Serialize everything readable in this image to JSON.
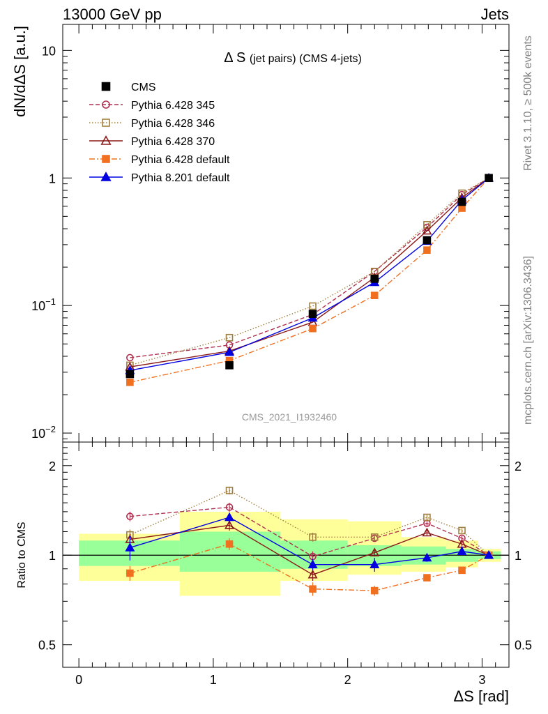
{
  "header": {
    "left": "13000 GeV pp",
    "right": "Jets"
  },
  "side_labels": {
    "rivet": "Rivet 3.1.10, ≥ 500k events",
    "mcplots": "mcplots.cern.ch [arXiv:1306.3436]"
  },
  "watermark": "CMS_2021_I1932460",
  "chart_data": [
    {
      "type": "line",
      "title_main": "Δ S",
      "title_sub": "(jet pairs) (CMS 4-jets)",
      "ylabel": "dN/dΔS [a.u.]",
      "yscale": "log",
      "xlim": [
        -0.12,
        3.2
      ],
      "ylim": [
        0.0085,
        16
      ],
      "y_ticks": [
        {
          "value": 0.01,
          "label": "10",
          "exp": "−2"
        },
        {
          "value": 0.1,
          "label": "10",
          "exp": "−1"
        },
        {
          "value": 1,
          "label": "1",
          "exp": ""
        },
        {
          "value": 10,
          "label": "10",
          "exp": ""
        }
      ],
      "legend_position": "top-left",
      "x": [
        0.38,
        1.12,
        1.74,
        2.2,
        2.59,
        2.85,
        3.05
      ],
      "series": [
        {
          "name": "CMS",
          "color": "#000000",
          "marker": "square-filled",
          "dash": "none",
          "values": [
            0.029,
            0.034,
            0.086,
            0.162,
            0.325,
            0.65,
            1.0
          ]
        },
        {
          "name": "Pythia 6.428 345",
          "color": "#b03050",
          "marker": "circle-open",
          "dash": "6,3",
          "values": [
            0.039,
            0.049,
            0.085,
            0.185,
            0.41,
            0.74,
            1.0
          ]
        },
        {
          "name": "Pythia 6.428 346",
          "color": "#a08040",
          "marker": "square-open",
          "dash": "1.5,2.5",
          "values": [
            0.034,
            0.056,
            0.099,
            0.185,
            0.43,
            0.76,
            1.0
          ]
        },
        {
          "name": "Pythia 6.428 370",
          "color": "#8b1a1a",
          "marker": "triangle-open",
          "dash": "none",
          "values": [
            0.033,
            0.044,
            0.074,
            0.166,
            0.385,
            0.7,
            1.0
          ]
        },
        {
          "name": "Pythia 6.428 default",
          "color": "#f07020",
          "marker": "square-filled",
          "dash": "8,3,2,3",
          "values": [
            0.025,
            0.037,
            0.066,
            0.12,
            0.272,
            0.58,
            1.0
          ]
        },
        {
          "name": "Pythia 8.201 default",
          "color": "#0000e0",
          "marker": "triangle-filled",
          "dash": "none",
          "values": [
            0.031,
            0.043,
            0.08,
            0.152,
            0.32,
            0.67,
            1.0
          ]
        }
      ]
    },
    {
      "type": "line",
      "xlabel": "ΔS [rad]",
      "ylabel": "Ratio to CMS",
      "yscale": "log",
      "xlim": [
        -0.12,
        3.2
      ],
      "ylim": [
        0.42,
        2.4
      ],
      "x_ticks": [
        0,
        1,
        2,
        3
      ],
      "y_ticks": [
        0.5,
        1,
        2
      ],
      "reference_line": 1,
      "bins": [
        [
          0,
          0.75
        ],
        [
          0.75,
          1.5
        ],
        [
          1.5,
          2.0
        ],
        [
          2.0,
          2.4
        ],
        [
          2.4,
          2.73
        ],
        [
          2.73,
          2.97
        ],
        [
          2.97,
          3.14
        ]
      ],
      "band_inner": [
        [
          0.92,
          1.12
        ],
        [
          0.88,
          1.2
        ],
        [
          0.9,
          1.12
        ],
        [
          0.92,
          1.08
        ],
        [
          0.93,
          1.07
        ],
        [
          0.95,
          1.05
        ],
        [
          0.97,
          1.03
        ]
      ],
      "band_outer": [
        [
          0.82,
          1.18
        ],
        [
          0.73,
          1.4
        ],
        [
          0.82,
          1.32
        ],
        [
          0.86,
          1.3
        ],
        [
          0.88,
          1.15
        ],
        [
          0.91,
          1.12
        ],
        [
          0.95,
          1.05
        ]
      ],
      "x": [
        0.38,
        1.12,
        1.74,
        2.2,
        2.59,
        2.85,
        3.05
      ],
      "series": [
        {
          "name": "Pythia 6.428 345",
          "color": "#b03050",
          "marker": "circle-open",
          "dash": "6,3",
          "values": [
            1.35,
            1.45,
            0.99,
            1.14,
            1.28,
            1.14,
            1.0
          ],
          "errors": [
            0.05,
            0.05,
            0.04,
            0.03,
            0.03,
            0.02,
            0.02
          ]
        },
        {
          "name": "Pythia 6.428 346",
          "color": "#a08040",
          "marker": "square-open",
          "dash": "1.5,2.5",
          "values": [
            1.17,
            1.65,
            1.15,
            1.15,
            1.34,
            1.21,
            1.0
          ],
          "errors": [
            0.05,
            0.05,
            0.04,
            0.03,
            0.03,
            0.02,
            0.02
          ]
        },
        {
          "name": "Pythia 6.428 370",
          "color": "#8b1a1a",
          "marker": "triangle-open",
          "dash": "none",
          "values": [
            1.13,
            1.26,
            0.86,
            1.02,
            1.19,
            1.09,
            1.0
          ],
          "errors": [
            0.05,
            0.05,
            0.04,
            0.03,
            0.03,
            0.02,
            0.02
          ]
        },
        {
          "name": "Pythia 6.428 default",
          "color": "#f07020",
          "marker": "square-filled",
          "dash": "8,3,2,3",
          "values": [
            0.87,
            1.09,
            0.77,
            0.76,
            0.84,
            0.89,
            1.0
          ],
          "errors": [
            0.05,
            0.05,
            0.04,
            0.03,
            0.02,
            0.02,
            0.02
          ]
        },
        {
          "name": "Pythia 8.201 default",
          "color": "#0000e0",
          "marker": "triangle-filled",
          "dash": "none",
          "values": [
            1.06,
            1.34,
            0.93,
            0.93,
            0.98,
            1.03,
            1.0
          ],
          "errors": [
            0.1,
            0.05,
            0.04,
            0.05,
            0.03,
            0.03,
            0.02
          ]
        }
      ]
    }
  ]
}
